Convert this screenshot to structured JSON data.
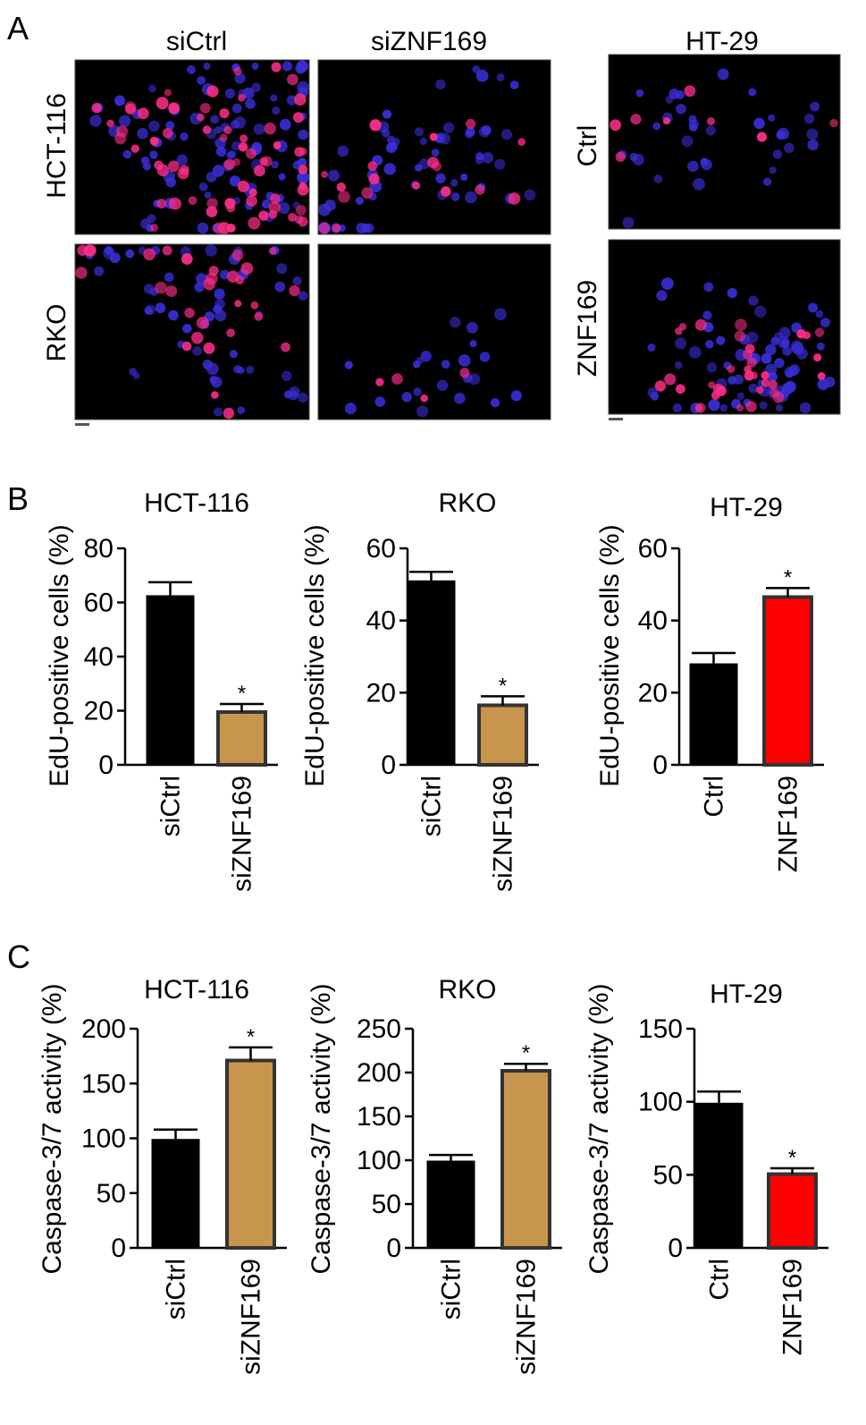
{
  "panels": {
    "A": {
      "label": "A",
      "left_group": {
        "columns": [
          "siCtrl",
          "siZNF169"
        ],
        "rows": [
          "HCT-116",
          "RKO"
        ]
      },
      "right_group": {
        "title": "HT-29",
        "rows": [
          "Ctrl",
          "ZNF169"
        ]
      }
    },
    "B": {
      "label": "B"
    },
    "C": {
      "label": "C"
    }
  },
  "colors": {
    "control_bar": "#000000",
    "knockdown_bar": "#c8954f",
    "overexpression_bar": "#ff0000",
    "bar_outline": "#333333",
    "nucleus_blue": "#3a2ed8",
    "edu_pink": "#ff2e8a"
  },
  "chart_data": [
    {
      "id": "B-HCT116",
      "type": "bar",
      "title": "HCT-116",
      "ylabel": "EdU-positive cells (%)",
      "ylim": [
        0,
        80
      ],
      "yticks": [
        0,
        20,
        40,
        60,
        80
      ],
      "categories": [
        "siCtrl",
        "siZNF169"
      ],
      "values": [
        62.5,
        19.5
      ],
      "errors": [
        5,
        3
      ],
      "significance": [
        "",
        "*"
      ],
      "colors": [
        "#000000",
        "#c8954f"
      ]
    },
    {
      "id": "B-RKO",
      "type": "bar",
      "title": "RKO",
      "ylabel": "EdU-positive cells (%)",
      "ylim": [
        0,
        60
      ],
      "yticks": [
        0,
        20,
        40,
        60
      ],
      "categories": [
        "siCtrl",
        "siZNF169"
      ],
      "values": [
        51,
        16.5
      ],
      "errors": [
        2.5,
        2.5
      ],
      "significance": [
        "",
        "*"
      ],
      "colors": [
        "#000000",
        "#c8954f"
      ]
    },
    {
      "id": "B-HT29",
      "type": "bar",
      "title": "HT-29",
      "ylabel": "EdU-positive cells (%)",
      "ylim": [
        0,
        60
      ],
      "yticks": [
        0,
        20,
        40,
        60
      ],
      "categories": [
        "Ctrl",
        "ZNF169"
      ],
      "values": [
        28,
        46.5
      ],
      "errors": [
        3,
        2.5
      ],
      "significance": [
        "",
        "*"
      ],
      "colors": [
        "#000000",
        "#ff0000"
      ]
    },
    {
      "id": "C-HCT116",
      "type": "bar",
      "title": "HCT-116",
      "ylabel": "Caspase-3/7 activity (%)",
      "ylim": [
        0,
        200
      ],
      "yticks": [
        0,
        50,
        100,
        150,
        200
      ],
      "categories": [
        "siCtrl",
        "siZNF169"
      ],
      "values": [
        99,
        171
      ],
      "errors": [
        9,
        12
      ],
      "significance": [
        "",
        "*"
      ],
      "colors": [
        "#000000",
        "#c8954f"
      ]
    },
    {
      "id": "C-RKO",
      "type": "bar",
      "title": "RKO",
      "ylabel": "Caspase-3/7 activity (%)",
      "ylim": [
        0,
        250
      ],
      "yticks": [
        0,
        50,
        100,
        150,
        200,
        250
      ],
      "categories": [
        "siCtrl",
        "siZNF169"
      ],
      "values": [
        99,
        202
      ],
      "errors": [
        7,
        8
      ],
      "significance": [
        "",
        "*"
      ],
      "colors": [
        "#000000",
        "#c8954f"
      ]
    },
    {
      "id": "C-HT29",
      "type": "bar",
      "title": "HT-29",
      "ylabel": "Caspase-3/7 activity (%)",
      "ylim": [
        0,
        150
      ],
      "yticks": [
        0,
        50,
        100,
        150
      ],
      "categories": [
        "Ctrl",
        "ZNF169"
      ],
      "values": [
        99,
        50.5
      ],
      "errors": [
        8,
        4
      ],
      "significance": [
        "",
        "*"
      ],
      "colors": [
        "#000000",
        "#ff0000"
      ]
    }
  ]
}
